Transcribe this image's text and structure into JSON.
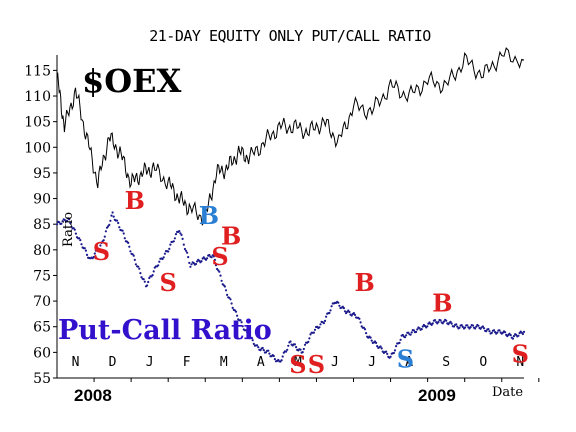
{
  "chart_data": {
    "type": "line",
    "title": "21-DAY EQUITY ONLY PUT/CALL RATIO",
    "ylabel": "Ratio",
    "xlabel": "Date",
    "ylim": [
      55,
      118
    ],
    "yticks": [
      "55",
      "60",
      "65",
      "70",
      "75",
      "80",
      "85",
      "90",
      "95",
      "100",
      "105",
      "110",
      "115"
    ],
    "xticks": [
      "N",
      "D",
      "J",
      "F",
      "M",
      "A",
      "M",
      "J",
      "J",
      "A",
      "S",
      "O",
      "N"
    ],
    "years": [
      "2008",
      "2009"
    ],
    "grid": false,
    "series": [
      {
        "name": "$OEX",
        "color": "#000000",
        "x": [
          0.0,
          0.2,
          0.5,
          0.8,
          1.1,
          1.4,
          1.7,
          2.0,
          2.3,
          2.6,
          3.0,
          3.3,
          3.6,
          4.0,
          4.3,
          4.6,
          4.9,
          5.2,
          5.6,
          6.0,
          6.4,
          6.8,
          7.2,
          7.6,
          8.0,
          8.5,
          9.0,
          9.5,
          10.0,
          10.5,
          11.0,
          11.5,
          12.0,
          12.6
        ],
        "values": [
          114,
          104,
          111,
          102,
          93,
          102,
          99,
          93,
          95,
          96,
          93,
          90,
          88,
          86,
          95,
          96,
          99,
          98,
          101,
          104,
          104,
          103,
          105,
          101,
          108,
          107,
          112,
          110,
          113,
          112,
          117,
          114,
          118,
          117
        ]
      },
      {
        "name": "Put-Call Ratio",
        "color": "#1a1a8c",
        "x": [
          0.0,
          0.3,
          0.6,
          0.9,
          1.2,
          1.5,
          1.8,
          2.1,
          2.4,
          2.7,
          3.0,
          3.3,
          3.6,
          3.9,
          4.2,
          4.5,
          4.8,
          5.1,
          5.4,
          5.7,
          6.0,
          6.3,
          6.6,
          6.9,
          7.2,
          7.5,
          7.8,
          8.1,
          8.4,
          8.7,
          9.0,
          9.3,
          9.6,
          9.9,
          10.2,
          10.5,
          10.8,
          11.1,
          11.4,
          11.7,
          12.0,
          12.3,
          12.6
        ],
        "values": [
          85,
          86,
          82,
          78,
          81,
          87,
          83,
          78,
          73,
          77,
          80,
          84,
          77,
          78,
          79,
          73,
          68,
          64,
          61,
          60,
          58,
          62,
          60,
          64,
          66,
          70,
          68,
          67,
          63,
          61,
          59,
          63,
          64,
          65,
          66,
          66,
          65,
          65,
          65,
          64,
          64,
          63,
          64
        ]
      }
    ],
    "annotations": [
      {
        "text": "$OEX",
        "color": "#000000"
      },
      {
        "text": "Put-Call Ratio",
        "color": "#3311cc"
      }
    ],
    "signals": [
      {
        "text": "S",
        "color": "#e02020",
        "x": 1.2,
        "y": 78
      },
      {
        "text": "B",
        "color": "#e02020",
        "x": 2.1,
        "y": 88
      },
      {
        "text": "S",
        "color": "#e02020",
        "x": 3.0,
        "y": 72
      },
      {
        "text": "B",
        "color": "#2a7fd4",
        "x": 4.1,
        "y": 85
      },
      {
        "text": "S",
        "color": "#e02020",
        "x": 4.4,
        "y": 77
      },
      {
        "text": "B",
        "color": "#e02020",
        "x": 4.7,
        "y": 81
      },
      {
        "text": "S",
        "color": "#e02020",
        "x": 6.5,
        "y": 56
      },
      {
        "text": "S",
        "color": "#e02020",
        "x": 7.0,
        "y": 56
      },
      {
        "text": "B",
        "color": "#e02020",
        "x": 8.3,
        "y": 72
      },
      {
        "text": "S",
        "color": "#2a7fd4",
        "x": 9.4,
        "y": 57
      },
      {
        "text": "B",
        "color": "#e02020",
        "x": 10.4,
        "y": 68
      },
      {
        "text": "S",
        "color": "#e02020",
        "x": 12.5,
        "y": 58
      }
    ]
  }
}
